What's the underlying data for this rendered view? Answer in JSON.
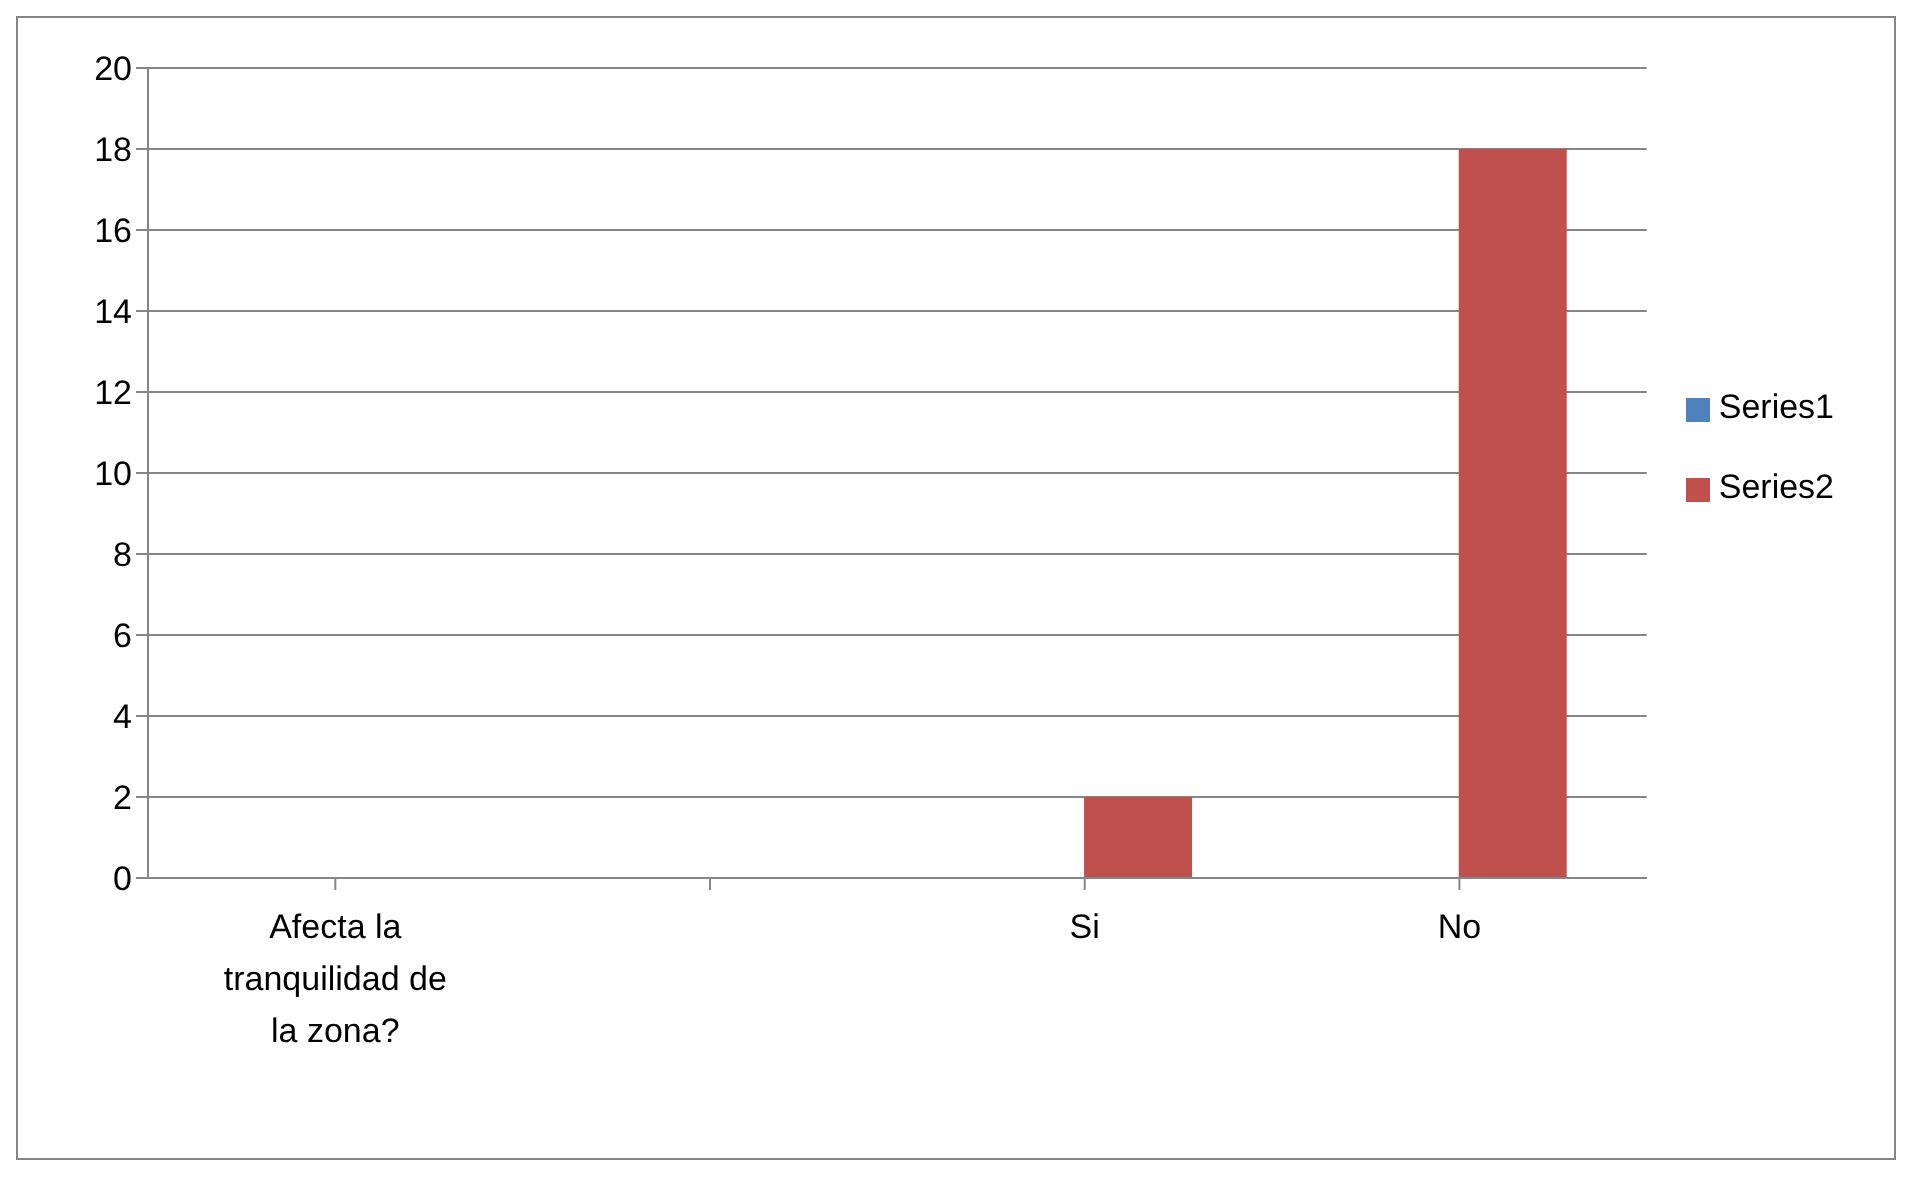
{
  "chart_data": {
    "type": "bar",
    "categories": [
      "Afecta la tranquilidad de la zona?",
      null,
      "Si",
      "No"
    ],
    "series": [
      {
        "name": "Series1",
        "color": "#4f81bd",
        "values": [
          null,
          null,
          null,
          null
        ]
      },
      {
        "name": "Series2",
        "color": "#c0504d",
        "values": [
          null,
          null,
          2,
          18
        ]
      }
    ],
    "ylim": [
      0,
      20
    ],
    "yticks": [
      0,
      2,
      4,
      6,
      8,
      10,
      12,
      14,
      16,
      18,
      20
    ],
    "grid": "y",
    "legend": "right"
  }
}
